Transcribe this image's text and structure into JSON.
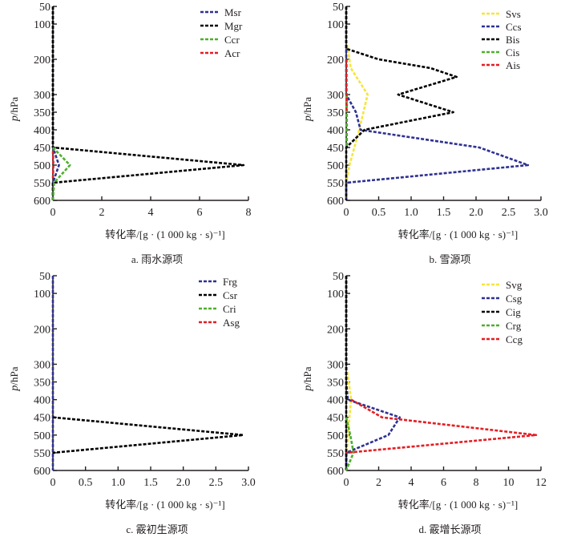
{
  "figure": {
    "panels_count": 4
  },
  "chart_data": [
    {
      "type": "line",
      "panel_id": "a",
      "caption": "a.  雨水源项",
      "xlabel": "转化率/[g · (1 000  kg · s)⁻¹]",
      "ylabel_italic": "p",
      "ylabel_rest": "/hPa",
      "xlim": [
        0,
        8
      ],
      "ylim": [
        50,
        600
      ],
      "y_inverted": true,
      "xticks": [
        0,
        2,
        4,
        6,
        8
      ],
      "xtick_labels": [
        "0",
        "2",
        "4",
        "6",
        "8"
      ],
      "yticks": [
        50,
        100,
        200,
        300,
        350,
        400,
        450,
        500,
        550,
        600
      ],
      "ytick_labels": [
        "50",
        "100",
        "200",
        "300",
        "350",
        "400",
        "450",
        "500",
        "550",
        "600"
      ],
      "legend_position": "top-right",
      "grid": false,
      "series": [
        {
          "name": "Msr",
          "color": "#2e3192",
          "p": [
            50,
            450,
            500,
            550,
            600
          ],
          "x": [
            0,
            0,
            0.25,
            0,
            0
          ]
        },
        {
          "name": "Mgr",
          "color": "#000000",
          "p": [
            50,
            450,
            500,
            550,
            600
          ],
          "x": [
            0,
            0,
            7.8,
            0,
            0
          ]
        },
        {
          "name": "Ccr",
          "color": "#4daf2d",
          "p": [
            450,
            500,
            550,
            600
          ],
          "x": [
            0,
            0.7,
            0.05,
            0
          ]
        },
        {
          "name": "Acr",
          "color": "#e31e24",
          "p": [
            460,
            500,
            540
          ],
          "x": [
            0,
            0.02,
            0
          ]
        }
      ]
    },
    {
      "type": "line",
      "panel_id": "b",
      "caption": "b.  雪源项",
      "xlabel": "转化率/[g · (1 000  kg · s)⁻¹]",
      "ylabel_italic": "p",
      "ylabel_rest": "/hPa",
      "xlim": [
        0,
        3.0
      ],
      "ylim": [
        50,
        600
      ],
      "y_inverted": true,
      "xticks": [
        0,
        0.5,
        1.0,
        1.5,
        2.0,
        2.5,
        3.0
      ],
      "xtick_labels": [
        "0",
        "0.5",
        "1.0",
        "1.5",
        "2.0",
        "2.5",
        "3.0"
      ],
      "yticks": [
        50,
        100,
        200,
        300,
        350,
        400,
        450,
        500,
        550,
        600
      ],
      "ytick_labels": [
        "50",
        "100",
        "200",
        "300",
        "350",
        "400",
        "450",
        "500",
        "550",
        "600"
      ],
      "legend_position": "top-right",
      "grid": false,
      "series": [
        {
          "name": "Svs",
          "color": "#f5e63b",
          "p": [
            50,
            150,
            175,
            225,
            300,
            400,
            500,
            550,
            600
          ],
          "x": [
            0,
            0,
            0.03,
            0.07,
            0.33,
            0.2,
            0.05,
            0,
            0
          ]
        },
        {
          "name": "Ccs",
          "color": "#2e3192",
          "p": [
            50,
            300,
            350,
            400,
            450,
            500,
            550,
            600
          ],
          "x": [
            0,
            0,
            0.15,
            0.22,
            2.05,
            2.8,
            0,
            0
          ]
        },
        {
          "name": "Bis",
          "color": "#000000",
          "p": [
            50,
            170,
            200,
            225,
            250,
            300,
            350,
            400,
            450,
            600
          ],
          "x": [
            0,
            0,
            0.5,
            1.3,
            1.7,
            0.8,
            1.65,
            0.28,
            0,
            0
          ]
        },
        {
          "name": "Cis",
          "color": "#4daf2d",
          "p": [
            300,
            450
          ],
          "x": [
            0.01,
            0.01
          ]
        },
        {
          "name": "Ais",
          "color": "#e31e24",
          "p": [
            200,
            350
          ],
          "x": [
            0.005,
            0.005
          ]
        }
      ]
    },
    {
      "type": "line",
      "panel_id": "c",
      "caption": "c.  霰初生源项",
      "xlabel": "转化率/[g · (1 000  kg · s)⁻¹]",
      "ylabel_italic": "p",
      "ylabel_rest": "/hPa",
      "xlim": [
        0,
        3.0
      ],
      "ylim": [
        50,
        600
      ],
      "y_inverted": true,
      "xticks": [
        0,
        0.5,
        1.0,
        1.5,
        2.0,
        2.5,
        3.0
      ],
      "xtick_labels": [
        "0",
        "0.5",
        "1.0",
        "1.5",
        "2.0",
        "2.5",
        "3.0"
      ],
      "yticks": [
        50,
        100,
        200,
        300,
        350,
        400,
        450,
        500,
        550,
        600
      ],
      "ytick_labels": [
        "50",
        "100",
        "200",
        "300",
        "350",
        "400",
        "450",
        "500",
        "550",
        "600"
      ],
      "legend_position": "top-right",
      "grid": false,
      "series": [
        {
          "name": "Frg",
          "color": "#2e3192",
          "p": [
            50,
            600
          ],
          "x": [
            0,
            0
          ]
        },
        {
          "name": "Csr",
          "color": "#000000",
          "p": [
            450,
            500,
            550
          ],
          "x": [
            0,
            2.92,
            0
          ]
        },
        {
          "name": "Cri",
          "color": "#4daf2d",
          "p": [],
          "x": []
        },
        {
          "name": "Asg",
          "color": "#e31e24",
          "p": [],
          "x": []
        }
      ]
    },
    {
      "type": "line",
      "panel_id": "d",
      "caption": "d.  霰增长源项",
      "xlabel": "转化率/[g · (1 000  kg · s)⁻¹]",
      "ylabel_italic": "p",
      "ylabel_rest": "/hPa",
      "xlim": [
        0,
        12
      ],
      "ylim": [
        50,
        600
      ],
      "y_inverted": true,
      "xticks": [
        0,
        2,
        4,
        6,
        8,
        10,
        12
      ],
      "xtick_labels": [
        "0",
        "2",
        "4",
        "6",
        "8",
        "10",
        "12"
      ],
      "yticks": [
        50,
        100,
        200,
        300,
        350,
        400,
        450,
        500,
        550,
        600
      ],
      "ytick_labels": [
        "50",
        "100",
        "200",
        "300",
        "350",
        "400",
        "450",
        "500",
        "550",
        "600"
      ],
      "legend_position": "top-right",
      "grid": false,
      "series": [
        {
          "name": "Svg",
          "color": "#f5e63b",
          "p": [
            50,
            300,
            400,
            500,
            600
          ],
          "x": [
            0,
            0,
            0.3,
            0.1,
            0
          ]
        },
        {
          "name": "Csg",
          "color": "#2e3192",
          "p": [
            50,
            350,
            400,
            450,
            500,
            550,
            600
          ],
          "x": [
            0,
            0,
            0.1,
            3.3,
            2.6,
            0,
            0
          ]
        },
        {
          "name": "Cig",
          "color": "#000000",
          "p": [
            50,
            600
          ],
          "x": [
            0,
            0
          ]
        },
        {
          "name": "Crg",
          "color": "#4daf2d",
          "p": [
            450,
            500,
            550,
            600
          ],
          "x": [
            0,
            0.25,
            0.45,
            0
          ]
        },
        {
          "name": "Ccg",
          "color": "#e31e24",
          "p": [
            400,
            450,
            500,
            550
          ],
          "x": [
            0.3,
            2.2,
            11.7,
            0
          ]
        }
      ]
    }
  ]
}
